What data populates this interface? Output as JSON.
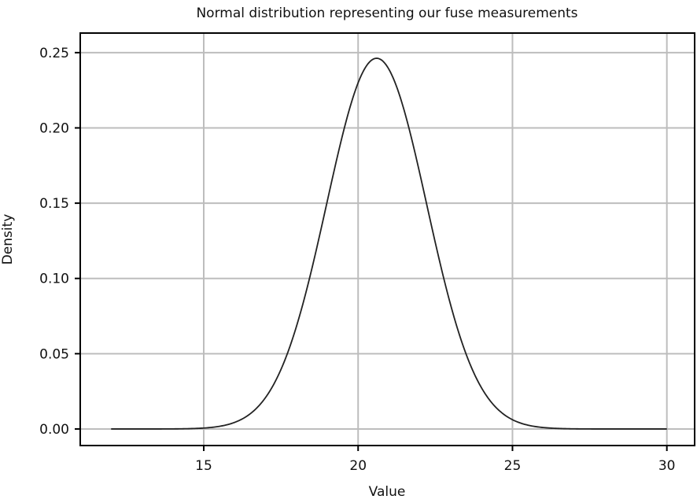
{
  "chart_data": {
    "type": "line",
    "title": "Normal distribution representing our fuse measurements",
    "xlabel": "Value",
    "ylabel": "Density",
    "distribution": "normal",
    "mean": 20.6,
    "sd": 1.62,
    "x_range": [
      12,
      30
    ],
    "xlim": [
      11.0,
      30.9
    ],
    "ylim": [
      -0.011,
      0.263
    ],
    "x_ticks": [
      15,
      20,
      25,
      30
    ],
    "x_tick_labels": [
      "15",
      "20",
      "25",
      "30"
    ],
    "y_ticks": [
      0.0,
      0.05,
      0.1,
      0.15,
      0.2,
      0.25
    ],
    "y_tick_labels": [
      "0.00",
      "0.05",
      "0.10",
      "0.15",
      "0.20",
      "0.25"
    ],
    "grid": true,
    "colors": {
      "line": "#222222",
      "grid": "#bdbdbd",
      "frame": "#000000"
    }
  }
}
